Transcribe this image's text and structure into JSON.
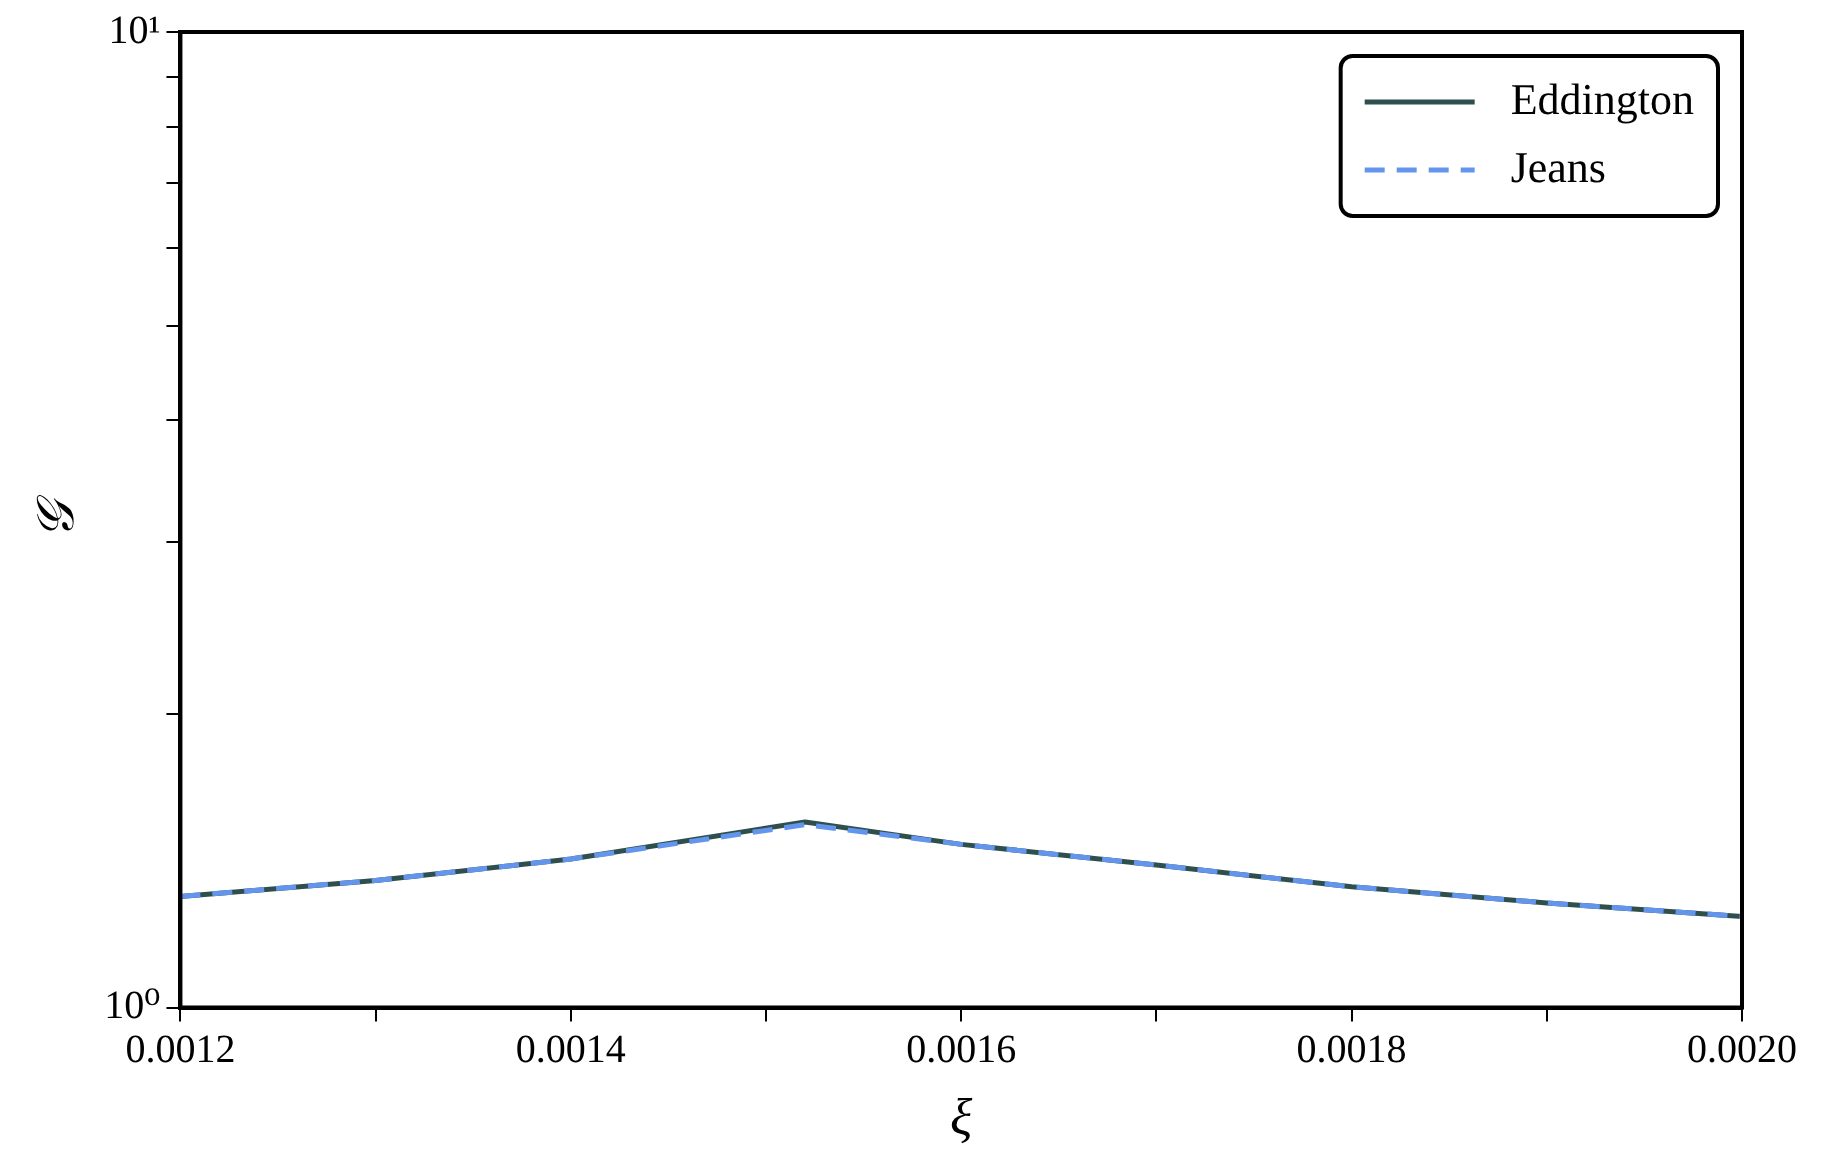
{
  "chart_data": {
    "type": "line",
    "xlabel": "ξ",
    "ylabel": "𝒢",
    "x": [
      0.0012,
      0.0013,
      0.0014,
      0.00152,
      0.0016,
      0.0017,
      0.0018,
      0.0019,
      0.002
    ],
    "series": [
      {
        "name": "Eddington",
        "color": "#2f4f4f",
        "line_style": "solid",
        "values": [
          1.3,
          1.35,
          1.42,
          1.55,
          1.47,
          1.4,
          1.33,
          1.28,
          1.24
        ]
      },
      {
        "name": "Jeans",
        "color": "#6495ed",
        "line_style": "dashed",
        "values": [
          1.3,
          1.35,
          1.42,
          1.54,
          1.47,
          1.4,
          1.33,
          1.28,
          1.24
        ]
      }
    ],
    "log": "y",
    "ylim": [
      1,
      10
    ],
    "yticks": [
      {
        "value": 1,
        "label": "10⁰"
      },
      {
        "value": 2,
        "label": null
      },
      {
        "value": 3,
        "label": null
      },
      {
        "value": 4,
        "label": null
      },
      {
        "value": 5,
        "label": null
      },
      {
        "value": 6,
        "label": null
      },
      {
        "value": 7,
        "label": null
      },
      {
        "value": 8,
        "label": null
      },
      {
        "value": 9,
        "label": null
      },
      {
        "value": 10,
        "label": "10¹"
      }
    ],
    "xlim": [
      0.0012,
      0.002
    ],
    "xticks": [
      0.0012,
      {
        "value": 0.0013,
        "label": null
      },
      0.0014,
      {
        "value": 0.0015,
        "label": null
      },
      0.0016,
      {
        "value": 0.0017,
        "label": null
      },
      0.0018,
      {
        "value": 0.0019,
        "label": null
      },
      {
        "value": 0.002,
        "label": "0.0020"
      }
    ],
    "grid": false,
    "legend": "top right",
    "marker": "none"
  }
}
